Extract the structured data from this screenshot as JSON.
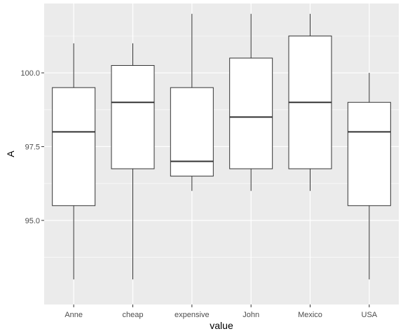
{
  "chart_data": {
    "type": "boxplot",
    "xlabel": "value",
    "ylabel": "A",
    "categories": [
      "Anne",
      "cheap",
      "expensive",
      "John",
      "Mexico",
      "USA"
    ],
    "boxes": [
      {
        "category": "Anne",
        "min": 93,
        "q1": 95.5,
        "median": 98,
        "q3": 99.5,
        "max": 101
      },
      {
        "category": "cheap",
        "min": 93,
        "q1": 96.75,
        "median": 99,
        "q3": 100.25,
        "max": 101
      },
      {
        "category": "expensive",
        "min": 96,
        "q1": 96.5,
        "median": 97,
        "q3": 99.5,
        "max": 102
      },
      {
        "category": "John",
        "min": 96,
        "q1": 96.75,
        "median": 98.5,
        "q3": 100.5,
        "max": 102
      },
      {
        "category": "Mexico",
        "min": 96,
        "q1": 96.75,
        "median": 99,
        "q3": 101.25,
        "max": 102
      },
      {
        "category": "USA",
        "min": 93,
        "q1": 95.5,
        "median": 98,
        "q3": 99,
        "max": 100
      }
    ],
    "yticks": [
      95.0,
      97.5,
      100.0
    ],
    "ytick_labels": [
      "95.0",
      "97.5",
      "100.0"
    ],
    "ylim": [
      92.15,
      102.35
    ],
    "grid": true,
    "colors": {
      "panel_background": "#ebebeb",
      "grid_major": "#ffffff",
      "box_fill": "#ffffff",
      "box_line": "#333333"
    }
  }
}
